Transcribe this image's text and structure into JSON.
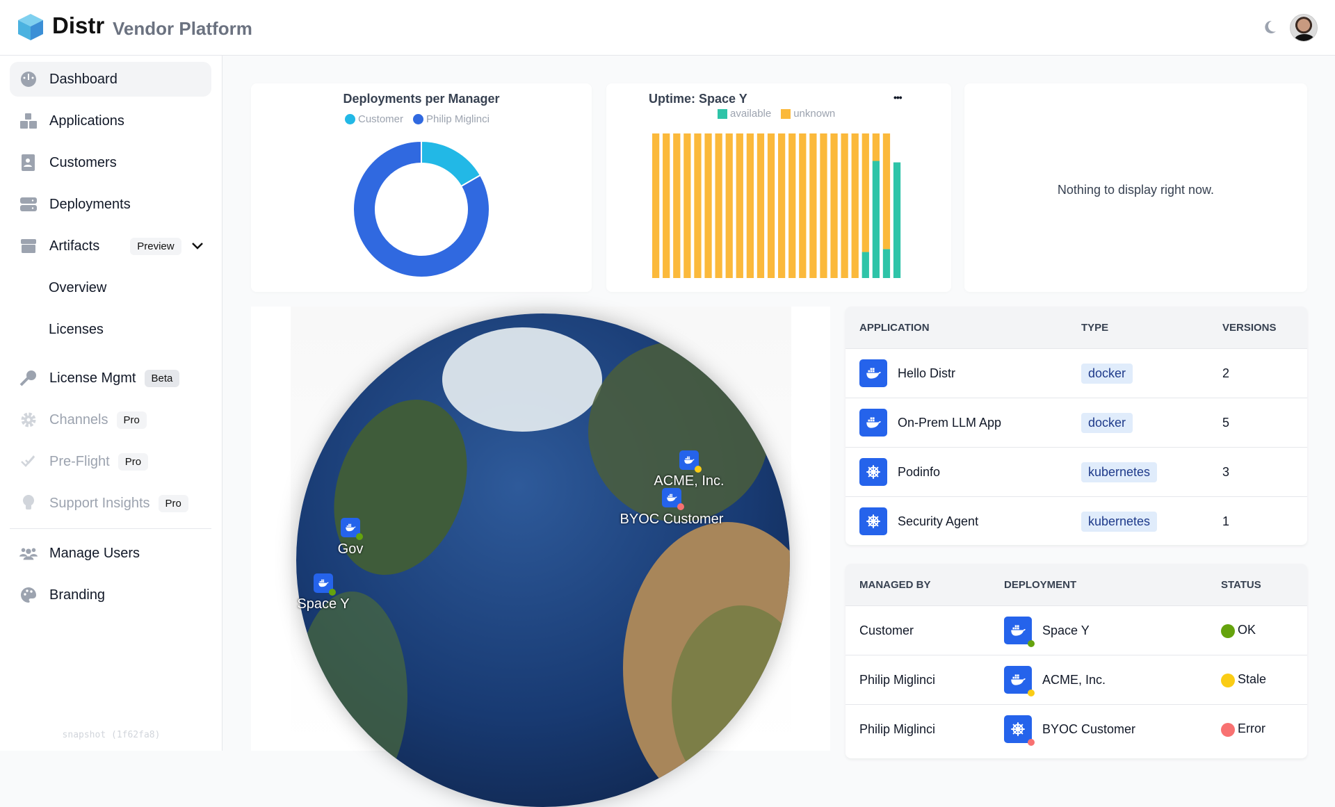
{
  "header": {
    "brand": "Distr",
    "subtitle": "Vendor Platform",
    "theme_icon": "moon-icon"
  },
  "sidebar": {
    "items": [
      {
        "label": "Dashboard",
        "icon": "dashboard-gauge-icon",
        "active": true
      },
      {
        "label": "Applications",
        "icon": "boxes-icon"
      },
      {
        "label": "Customers",
        "icon": "contact-card-icon"
      },
      {
        "label": "Deployments",
        "icon": "server-icon"
      },
      {
        "label": "Artifacts",
        "icon": "archive-box-icon",
        "badge": "Preview"
      },
      {
        "label": "Overview"
      },
      {
        "label": "Licenses"
      },
      {
        "label": "License Mgmt",
        "icon": "key-icon",
        "badge": "Beta"
      },
      {
        "label": "Channels",
        "icon": "gear-icon",
        "badge": "Pro",
        "disabled": true
      },
      {
        "label": "Pre-Flight",
        "icon": "double-check-icon",
        "badge": "Pro",
        "disabled": true
      },
      {
        "label": "Support Insights",
        "icon": "lightbulb-icon",
        "badge": "Pro",
        "disabled": true
      },
      {
        "label": "Manage Users",
        "icon": "users-icon"
      },
      {
        "label": "Branding",
        "icon": "palette-icon"
      }
    ],
    "snapshot": "snapshot (1f62fa8)"
  },
  "chart_data": [
    {
      "type": "pie",
      "title": "Deployments per Manager",
      "donut": true,
      "legend": "top",
      "categories": [
        "Customer",
        "Philip Miglinci"
      ],
      "values": [
        1,
        5
      ],
      "colors": [
        "#22b8e6",
        "#3069e0"
      ]
    },
    {
      "type": "bar",
      "stacked": true,
      "title": "Uptime: Space Y",
      "legend": "top",
      "grid": false,
      "series": [
        {
          "name": "available",
          "color": "#2ec4a8",
          "values": [
            0,
            0,
            0,
            0,
            0,
            0,
            0,
            0,
            0,
            0,
            0,
            0,
            0,
            0,
            0,
            0,
            0,
            0,
            0,
            0,
            18,
            81,
            20,
            80
          ]
        },
        {
          "name": "unknown",
          "color": "#fbb93b",
          "values": [
            100,
            100,
            100,
            100,
            100,
            100,
            100,
            100,
            100,
            100,
            100,
            100,
            100,
            100,
            100,
            100,
            100,
            100,
            100,
            100,
            82,
            19,
            80,
            0
          ]
        }
      ]
    }
  ],
  "uptime_menu": "•••",
  "empty_card": {
    "text": "Nothing to display right now."
  },
  "globe": {
    "markers": [
      {
        "label": "ACME, Inc.",
        "status_color": "#facc15"
      },
      {
        "label": "BYOC Customer",
        "status_color": "#f87171"
      },
      {
        "label": "Gov",
        "status_color": "#65a30d"
      },
      {
        "label": "Space Y",
        "status_color": "#65a30d"
      }
    ]
  },
  "applications": {
    "headers": [
      "APPLICATION",
      "TYPE",
      "VERSIONS"
    ],
    "rows": [
      {
        "name": "Hello Distr",
        "type": "docker",
        "versions": "2"
      },
      {
        "name": "On-Prem LLM App",
        "type": "docker",
        "versions": "5"
      },
      {
        "name": "Podinfo",
        "type": "kubernetes",
        "versions": "3"
      },
      {
        "name": "Security Agent",
        "type": "kubernetes",
        "versions": "1"
      }
    ]
  },
  "deployments": {
    "headers": [
      "MANAGED BY",
      "DEPLOYMENT",
      "STATUS"
    ],
    "rows": [
      {
        "managed_by": "Customer",
        "deployment": "Space Y",
        "type": "docker",
        "status": "OK",
        "status_color": "#65a30d"
      },
      {
        "managed_by": "Philip Miglinci",
        "deployment": "ACME, Inc.",
        "type": "docker",
        "status": "Stale",
        "status_color": "#facc15"
      },
      {
        "managed_by": "Philip Miglinci",
        "deployment": "BYOC Customer",
        "type": "kubernetes",
        "status": "Error",
        "status_color": "#f87171"
      }
    ]
  }
}
